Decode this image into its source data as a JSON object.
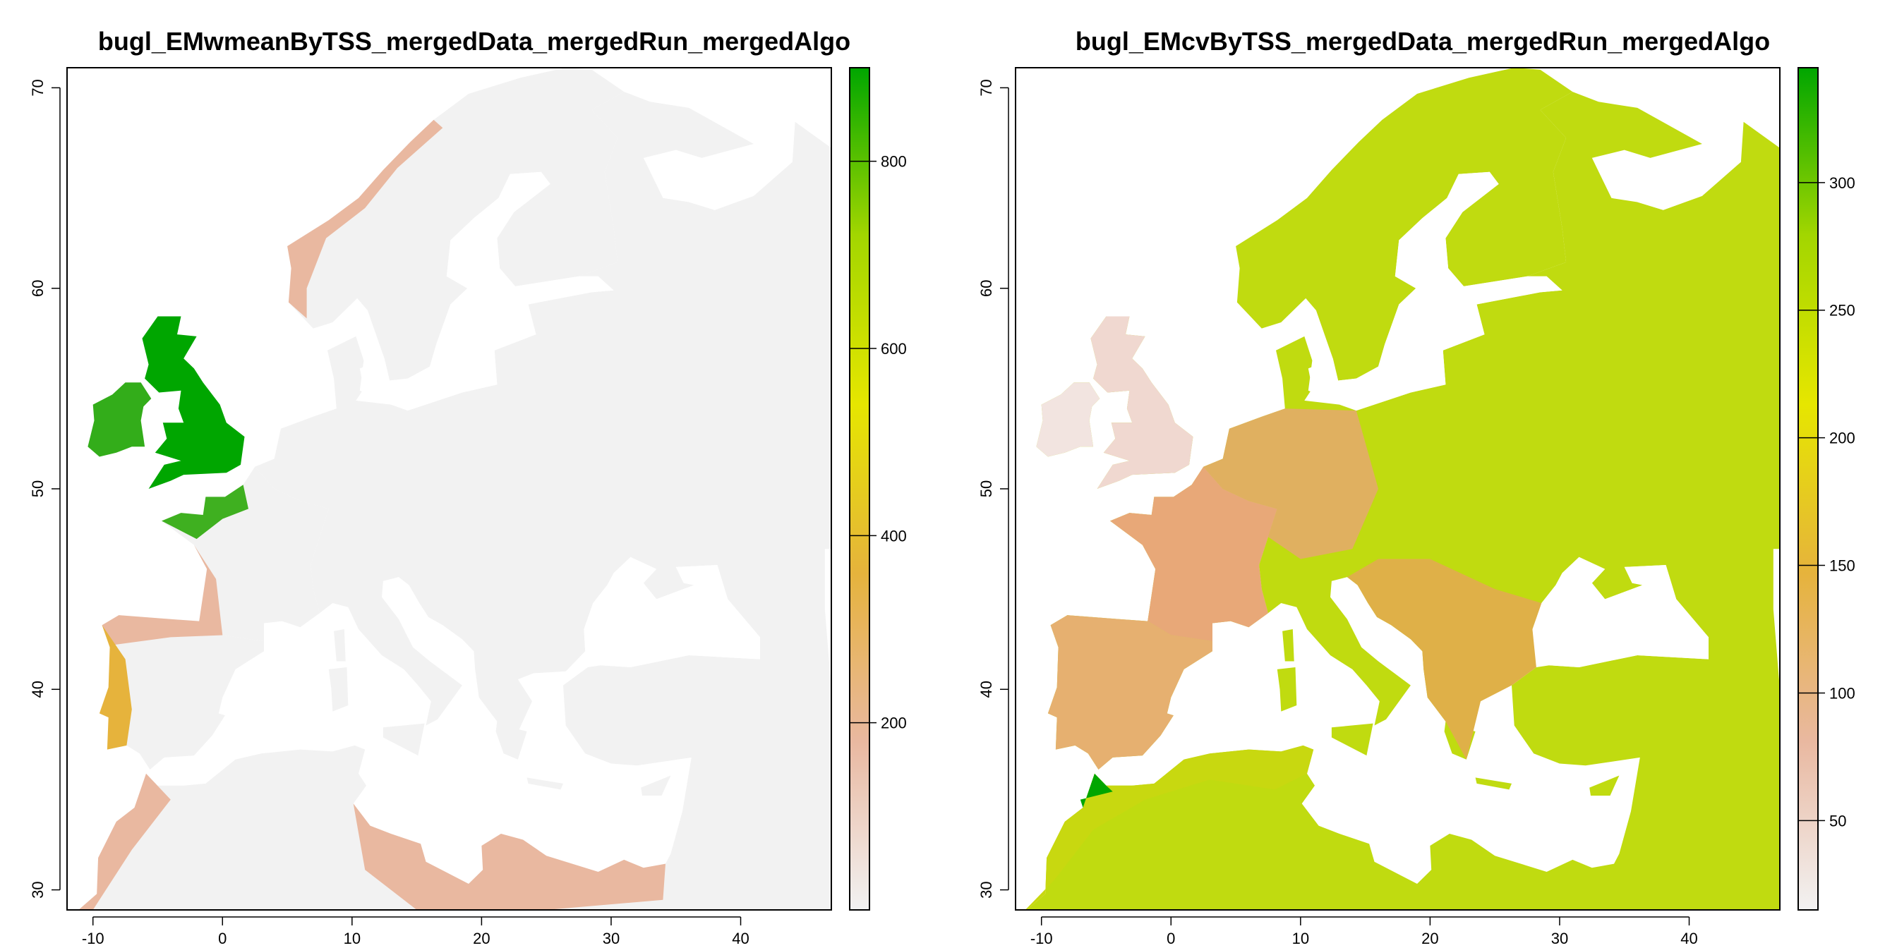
{
  "maps": [
    {
      "id": "left",
      "title": "bugl_EMwmeanByTSS_mergedData_mergedRun_mergedAlgo",
      "x_ticks": [
        "-10",
        "0",
        "10",
        "20",
        "30",
        "40"
      ],
      "y_ticks": [
        "30",
        "40",
        "50",
        "60",
        "70"
      ],
      "legend_ticks": [
        "200",
        "400",
        "600",
        "800"
      ],
      "legend_range": [
        0,
        900
      ],
      "x_range": [
        -12,
        47
      ],
      "y_range": [
        29,
        71
      ]
    },
    {
      "id": "right",
      "title": "bugl_EMcvByTSS_mergedData_mergedRun_mergedAlgo",
      "x_ticks": [
        "-10",
        "0",
        "10",
        "20",
        "30",
        "40"
      ],
      "y_ticks": [
        "30",
        "40",
        "50",
        "60",
        "70"
      ],
      "legend_ticks": [
        "50",
        "100",
        "150",
        "200",
        "250",
        "300"
      ],
      "legend_range": [
        15,
        345
      ],
      "x_range": [
        -12,
        47
      ],
      "y_range": [
        29,
        71
      ]
    }
  ],
  "colors": {
    "scale_low": "#f2f2f2",
    "scale_1": "#e9b8a0",
    "scale_2": "#e6b33c",
    "scale_3": "#e6e600",
    "scale_4": "#a3d600",
    "scale_high": "#00a600",
    "sea": "#ffffff",
    "left_land": "#f2f2f2",
    "right_land": "#c0db10"
  }
}
